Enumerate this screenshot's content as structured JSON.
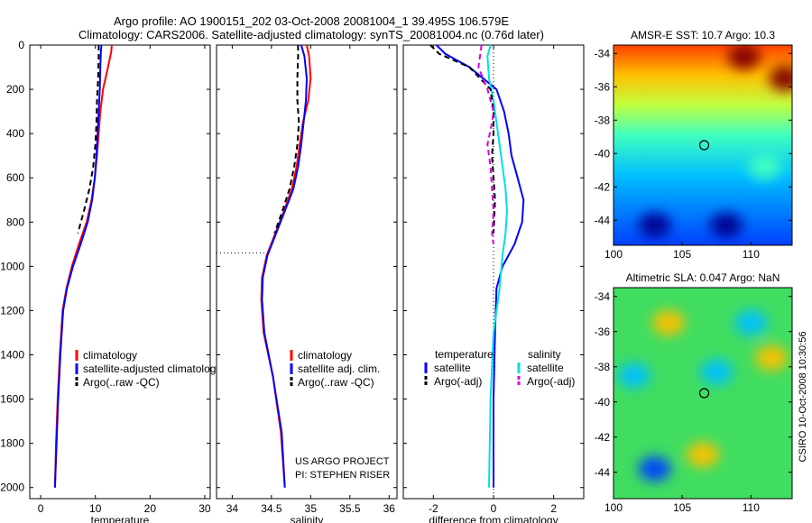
{
  "header": {
    "title_line1": "Argo profile: AO 1900151_202 03-Oct-2008 20081004_1 39.495S 106.579E",
    "title_line2": "Climatology: CARS2006. Satellite-adjusted climatology: synTS_20081004.nc (0.76d later)"
  },
  "side_label": "CSIRO 10-Oct-2008 10:30:56",
  "chart_data": [
    {
      "id": "temperature",
      "type": "line",
      "xlabel": "temperature",
      "ylabel": "",
      "xlim": [
        -2,
        31
      ],
      "ylim": [
        2050,
        0
      ],
      "xticks": [
        0,
        10,
        20,
        30
      ],
      "yticks": [
        0,
        200,
        400,
        600,
        800,
        1000,
        1200,
        1400,
        1600,
        1800,
        2000
      ],
      "legend": [
        "climatology",
        "satellite-adjusted climatology",
        "Argo(..raw -QC)"
      ],
      "series": [
        {
          "name": "climatology",
          "color": "#ff0000",
          "dash": "",
          "x": [
            13.0,
            12.9,
            12.3,
            11.4,
            10.9,
            10.6,
            10.3,
            9.9,
            9.3,
            8.4,
            7.0,
            5.7,
            4.7,
            4.0,
            3.5,
            3.1,
            2.8,
            2.6
          ],
          "y": [
            0,
            30,
            100,
            200,
            300,
            400,
            500,
            600,
            700,
            800,
            900,
            1000,
            1100,
            1200,
            1400,
            1600,
            1800,
            2000
          ]
        },
        {
          "name": "satellite-adjusted climatology",
          "color": "#0000ff",
          "dash": "",
          "x": [
            11.1,
            11.0,
            10.9,
            10.8,
            10.6,
            10.4,
            10.2,
            9.9,
            9.4,
            8.6,
            7.3,
            5.9,
            4.8,
            4.1,
            3.6,
            3.2,
            2.9,
            2.6
          ],
          "y": [
            0,
            30,
            100,
            200,
            300,
            400,
            500,
            600,
            700,
            800,
            900,
            1000,
            1100,
            1200,
            1400,
            1600,
            1800,
            2000
          ]
        },
        {
          "name": "Argo(..raw -QC)",
          "color": "#000000",
          "dash": "6,4",
          "x": [
            10.6,
            10.6,
            10.5,
            10.3,
            10.2,
            10.0,
            9.6,
            8.9,
            7.9,
            6.8
          ],
          "y": [
            0,
            50,
            150,
            250,
            350,
            450,
            550,
            650,
            750,
            850
          ]
        }
      ]
    },
    {
      "id": "salinity",
      "type": "line",
      "xlabel": "salinity",
      "ylabel": "",
      "xlim": [
        33.8,
        36.1
      ],
      "ylim": [
        2050,
        0
      ],
      "xticks": [
        34,
        34.5,
        35,
        35.5,
        36
      ],
      "yticks": [
        0,
        200,
        400,
        600,
        800,
        1000,
        1200,
        1400,
        1600,
        1800,
        2000
      ],
      "legend": [
        "climatology",
        "satellite adj. clim.",
        "Argo(..raw -QC)"
      ],
      "mixed_layer_depth": 940,
      "series": [
        {
          "name": "climatology",
          "color": "#ff0000",
          "dash": "",
          "x": [
            34.95,
            34.98,
            35.0,
            34.97,
            34.9,
            34.86,
            34.82,
            34.76,
            34.66,
            34.55,
            34.44,
            34.38,
            34.37,
            34.4,
            34.52,
            34.62,
            34.67
          ],
          "y": [
            0,
            50,
            150,
            250,
            350,
            450,
            550,
            650,
            750,
            850,
            950,
            1050,
            1150,
            1300,
            1500,
            1750,
            2000
          ]
        },
        {
          "name": "satellite adj. clim.",
          "color": "#0000ff",
          "dash": "",
          "x": [
            34.88,
            34.92,
            34.95,
            34.94,
            34.91,
            34.88,
            34.84,
            34.78,
            34.67,
            34.56,
            34.45,
            34.39,
            34.38,
            34.41,
            34.52,
            34.63,
            34.67
          ],
          "y": [
            0,
            50,
            150,
            250,
            350,
            450,
            550,
            650,
            750,
            850,
            950,
            1050,
            1150,
            1300,
            1500,
            1750,
            2000
          ]
        },
        {
          "name": "Argo(..raw -QC)",
          "color": "#000000",
          "dash": "6,4",
          "x": [
            34.84,
            34.84,
            34.83,
            34.83,
            34.85,
            34.83,
            34.79,
            34.73,
            34.64,
            34.54
          ],
          "y": [
            0,
            50,
            150,
            250,
            350,
            450,
            550,
            650,
            750,
            850
          ]
        }
      ]
    },
    {
      "id": "difference",
      "type": "line",
      "xlabel": "difference from climatology",
      "ylabel": "",
      "xlim": [
        -3,
        3
      ],
      "ylim": [
        2050,
        0
      ],
      "xticks": [
        -2,
        0,
        2
      ],
      "yticks": [
        0,
        200,
        400,
        600,
        800,
        1000,
        1200,
        1400,
        1600,
        1800,
        2000
      ],
      "legend_groups": [
        {
          "heading": "temperature",
          "items": [
            "satellite",
            "Argo(-adj)"
          ]
        },
        {
          "heading": "salinity",
          "items": [
            "satellite",
            "Argo(-adj)"
          ]
        }
      ],
      "series": [
        {
          "name": "temperature satellite",
          "color": "#0000ff",
          "dash": "",
          "x": [
            -1.9,
            -1.6,
            -0.8,
            0.1,
            0.35,
            0.5,
            0.6,
            0.8,
            1.0,
            0.95,
            0.7,
            0.3,
            0.1,
            0.05,
            0.0,
            0.0
          ],
          "y": [
            0,
            40,
            100,
            200,
            300,
            400,
            500,
            600,
            700,
            800,
            900,
            1000,
            1100,
            1300,
            1600,
            2000
          ]
        },
        {
          "name": "salinity satellite",
          "color": "#00e0e0",
          "dash": "",
          "x": [
            -0.1,
            -0.2,
            -0.15,
            0.0,
            0.1,
            0.2,
            0.3,
            0.4,
            0.45,
            0.4,
            0.3,
            0.2,
            0.0,
            -0.1,
            -0.15
          ],
          "y": [
            0,
            50,
            150,
            250,
            350,
            450,
            550,
            650,
            750,
            850,
            950,
            1100,
            1300,
            1600,
            2000
          ]
        },
        {
          "name": "temperature Argo(-adj)",
          "color": "#000000",
          "dash": "6,4",
          "x": [
            -2.1,
            -1.8,
            -0.8,
            -0.1,
            0.0,
            0.0,
            -0.05,
            0.0,
            0.05,
            0.0
          ],
          "y": [
            0,
            40,
            100,
            200,
            300,
            400,
            500,
            600,
            700,
            850
          ]
        },
        {
          "name": "salinity Argo(-adj)",
          "color": "#dd00dd",
          "dash": "6,4",
          "x": [
            -0.4,
            -0.5,
            -0.2,
            0.0,
            -0.05,
            -0.2,
            -0.1,
            -0.05,
            0.0,
            -0.05,
            0.0
          ],
          "y": [
            0,
            100,
            200,
            300,
            350,
            450,
            550,
            650,
            750,
            850,
            900
          ]
        }
      ]
    },
    {
      "id": "sst_map",
      "type": "heatmap",
      "title": "AMSR-E SST: 10.7 Argo: 10.3",
      "xlim": [
        100,
        113
      ],
      "ylim": [
        -45.5,
        -33.5
      ],
      "xticks": [
        100,
        105,
        110
      ],
      "yticks": [
        -34,
        -36,
        -38,
        -40,
        -42,
        -44
      ],
      "marker": {
        "lon": 106.6,
        "lat": -39.5
      },
      "palette": [
        "#00008f",
        "#0040ff",
        "#00c0ff",
        "#40ffbf",
        "#c0ff40",
        "#ffc000",
        "#ff4000",
        "#800000"
      ],
      "blobs": [
        {
          "lon": 103,
          "lat": -44.3,
          "value": 0.0
        },
        {
          "lon": 108.2,
          "lat": -44.3,
          "value": 0.0
        },
        {
          "lon": 111,
          "lat": -40.8,
          "value": 0.45
        },
        {
          "lon": 109.5,
          "lat": -34.2,
          "value": 1.0
        },
        {
          "lon": 112.5,
          "lat": -35.5,
          "value": 1.0
        }
      ]
    },
    {
      "id": "sla_map",
      "type": "heatmap",
      "title": "Altimetric SLA: 0.047 Argo: NaN",
      "xlim": [
        100,
        113
      ],
      "ylim": [
        -45.5,
        -33.5
      ],
      "xticks": [
        100,
        105,
        110
      ],
      "yticks": [
        -34,
        -36,
        -38,
        -40,
        -42,
        -44
      ],
      "marker": {
        "lon": 106.6,
        "lat": -39.5
      },
      "palette": [
        "#00008f",
        "#0040ff",
        "#00c0ff",
        "#40ffbf",
        "#c0ff40",
        "#ffc000",
        "#ff4000",
        "#800000"
      ],
      "blobs": [
        {
          "lon": 103,
          "lat": -43.8,
          "value": 0.1
        },
        {
          "lon": 104,
          "lat": -35.5,
          "value": 0.75
        },
        {
          "lon": 111.5,
          "lat": -37.5,
          "value": 0.75
        },
        {
          "lon": 106.5,
          "lat": -43,
          "value": 0.75
        },
        {
          "lon": 110,
          "lat": -35.5,
          "value": 0.35
        },
        {
          "lon": 107.5,
          "lat": -38.3,
          "value": 0.35
        },
        {
          "lon": 101.5,
          "lat": -38.5,
          "value": 0.35
        }
      ]
    }
  ],
  "annotations": {
    "project": "US ARGO PROJECT",
    "pi": "PI: STEPHEN RISER"
  }
}
